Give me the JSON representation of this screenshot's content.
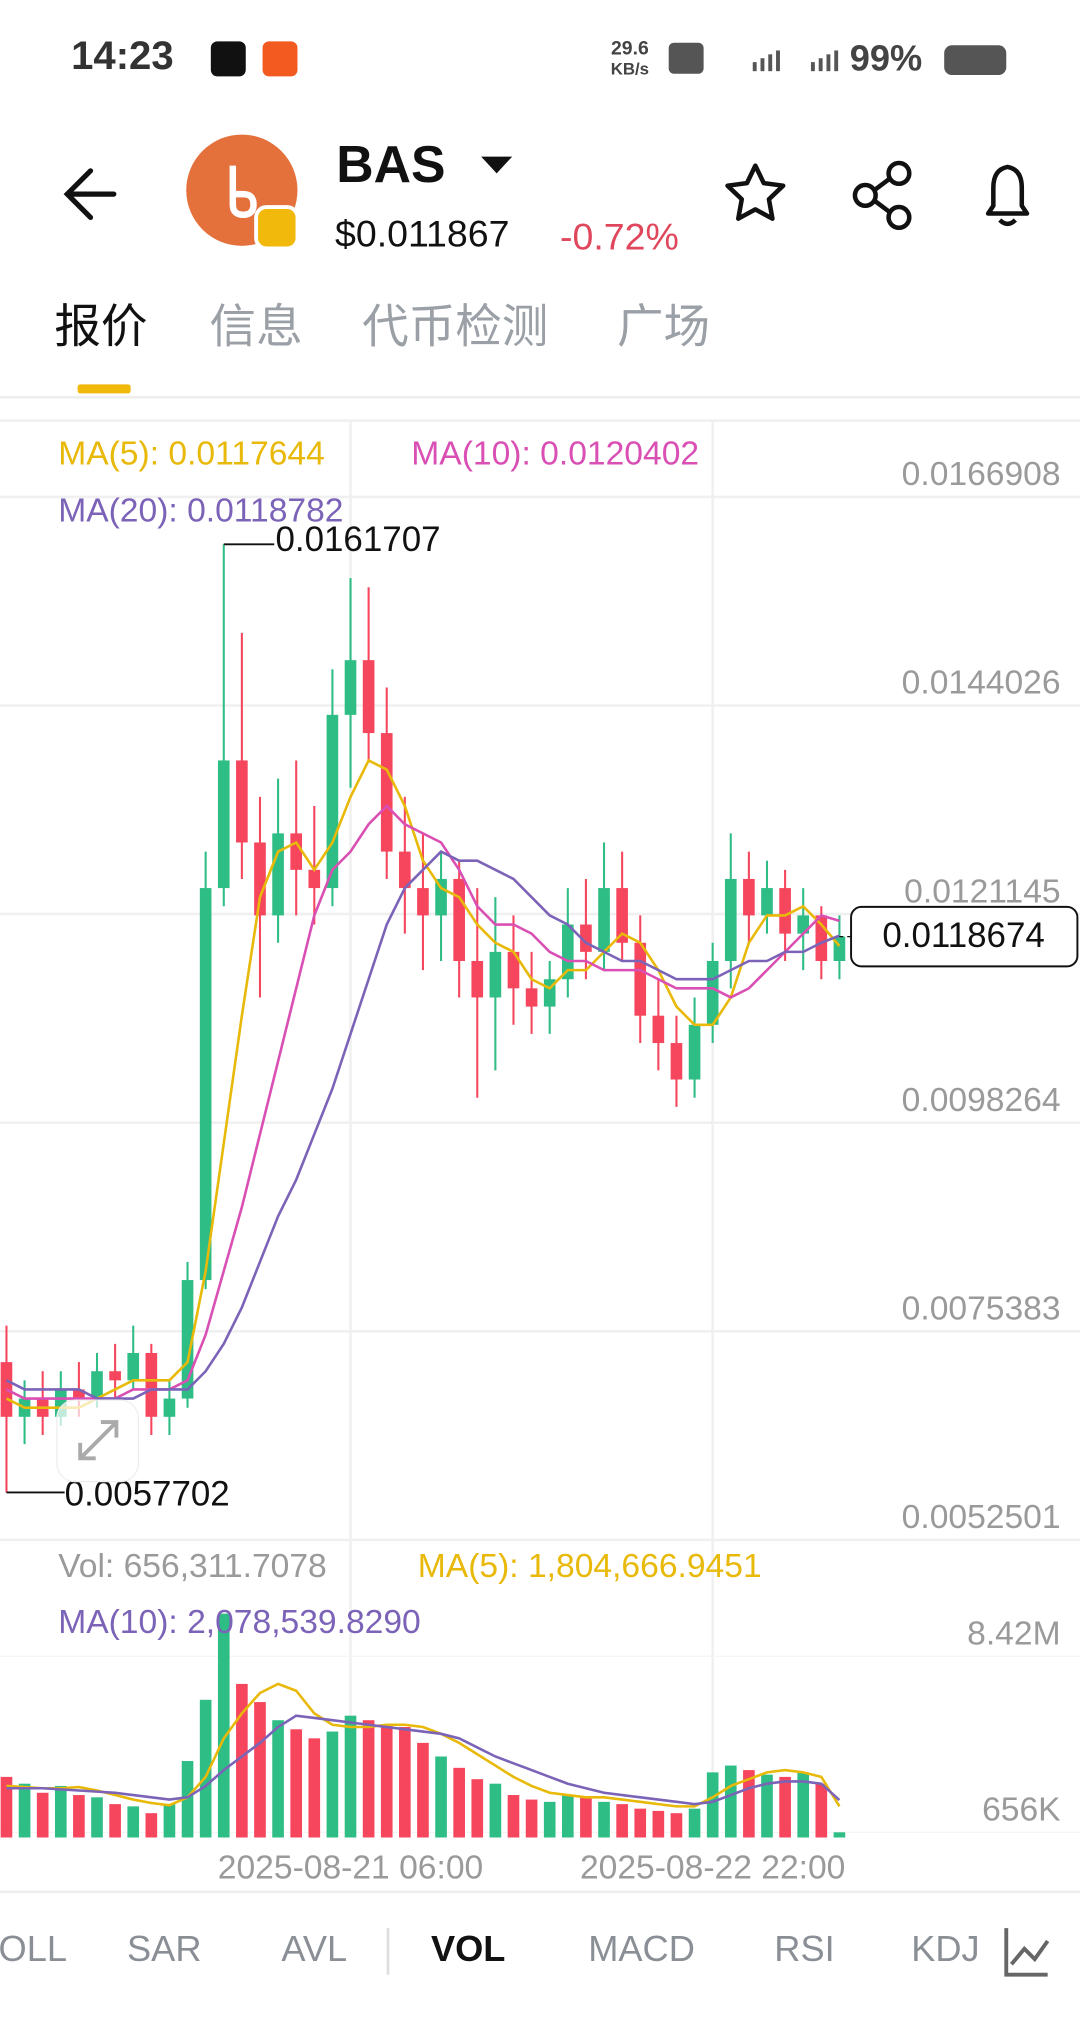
{
  "status_bar": {
    "time": "14:23",
    "speed_value": "29.6",
    "speed_unit": "KB/s",
    "battery": "99%"
  },
  "header": {
    "symbol": "BAS",
    "price": "$0.011867",
    "change": "-0.72%"
  },
  "tabs": [
    "报价",
    "信息",
    "代币检测",
    "广场"
  ],
  "active_tab": 0,
  "indicators": [
    "BOLL",
    "SAR",
    "AVL",
    "VOL",
    "MACD",
    "RSI",
    "KDJ"
  ],
  "active_indicator": 3,
  "chart_data": [
    {
      "type": "candlestick",
      "categories": [
        null,
        null,
        null,
        null,
        null,
        null,
        null,
        null,
        null,
        null,
        null,
        null,
        null,
        null,
        null,
        null,
        null,
        null,
        null,
        "2025-08-21 06:00",
        null,
        null,
        null,
        null,
        null,
        null,
        null,
        null,
        null,
        null,
        null,
        null,
        null,
        null,
        null,
        null,
        null,
        null,
        null,
        "2025-08-22 22:00",
        null,
        null,
        null,
        null,
        null,
        null,
        null
      ],
      "open": [
        0.0072,
        0.0066,
        0.0068,
        0.0066,
        0.0069,
        0.0068,
        0.0071,
        0.007,
        0.0073,
        0.0066,
        0.0068,
        0.0081,
        0.0124,
        0.0138,
        0.0129,
        0.0121,
        0.013,
        0.0126,
        0.0124,
        0.0143,
        0.0149,
        0.0141,
        0.0128,
        0.0124,
        0.0121,
        0.0125,
        0.0116,
        0.0112,
        0.0117,
        0.0113,
        0.0111,
        0.0114,
        0.012,
        0.0117,
        0.0124,
        0.0118,
        0.011,
        0.0107,
        0.0103,
        0.0109,
        0.0116,
        0.0125,
        0.0121,
        0.0124,
        0.0119,
        0.0121,
        0.0116
      ],
      "high": [
        0.0076,
        0.007,
        0.0071,
        0.0071,
        0.0072,
        0.0073,
        0.0074,
        0.0076,
        0.0074,
        0.007,
        0.0083,
        0.0128,
        0.0161707,
        0.0152,
        0.0134,
        0.0136,
        0.0138,
        0.0133,
        0.0148,
        0.0158,
        0.0157,
        0.0146,
        0.0134,
        0.013,
        0.0128,
        0.0127,
        0.0124,
        0.0123,
        0.0121,
        0.0117,
        0.0116,
        0.0124,
        0.0125,
        0.0129,
        0.0128,
        0.0121,
        0.0114,
        0.011,
        0.0112,
        0.0118,
        0.013,
        0.0128,
        0.0127,
        0.0126,
        0.0124,
        0.0122,
        0.0121
      ],
      "low": [
        0.0057702,
        0.0063,
        0.0064,
        0.0065,
        0.0066,
        0.0067,
        0.0068,
        0.0069,
        0.0064,
        0.0064,
        0.0067,
        0.008,
        0.0122,
        0.0125,
        0.0112,
        0.0118,
        0.0121,
        0.012,
        0.0122,
        0.0135,
        0.0138,
        0.0125,
        0.0119,
        0.0115,
        0.0116,
        0.0112,
        0.0101,
        0.0104,
        0.0109,
        0.0108,
        0.0108,
        0.0112,
        0.0114,
        0.0115,
        0.0116,
        0.0107,
        0.0104,
        0.01,
        0.0101,
        0.0107,
        0.0113,
        0.0118,
        0.0119,
        0.0116,
        0.0115,
        0.0114,
        0.0114
      ],
      "close": [
        0.0066,
        0.0068,
        0.0066,
        0.0069,
        0.0068,
        0.0071,
        0.007,
        0.0073,
        0.0066,
        0.0068,
        0.0081,
        0.0124,
        0.0138,
        0.0129,
        0.0121,
        0.013,
        0.0126,
        0.0124,
        0.0143,
        0.0149,
        0.0141,
        0.0128,
        0.0124,
        0.0121,
        0.0125,
        0.0116,
        0.0112,
        0.0117,
        0.0113,
        0.0111,
        0.0114,
        0.012,
        0.0117,
        0.0124,
        0.0118,
        0.011,
        0.0107,
        0.0103,
        0.0109,
        0.0116,
        0.0125,
        0.0121,
        0.0124,
        0.0119,
        0.0121,
        0.0116,
        0.0118674
      ],
      "up_color": "#2ebd85",
      "down_color": "#f6465d",
      "series": [
        {
          "name": "MA(5): 0.0117644",
          "color": "#e8b909",
          "values": [
            0.0068,
            0.0067,
            0.0067,
            0.0067,
            0.0067,
            0.0068,
            0.0069,
            0.007,
            0.007,
            0.007,
            0.0072,
            0.0082,
            0.0096,
            0.011,
            0.0123,
            0.0128,
            0.0129,
            0.0126,
            0.0129,
            0.0134,
            0.0138,
            0.0137,
            0.0133,
            0.0127,
            0.0124,
            0.0123,
            0.012,
            0.0118,
            0.0117,
            0.0114,
            0.0113,
            0.0115,
            0.0115,
            0.0117,
            0.0119,
            0.0118,
            0.0115,
            0.0111,
            0.0109,
            0.0109,
            0.0112,
            0.0118,
            0.0121,
            0.0121,
            0.0122,
            0.012,
            0.0117644
          ]
        },
        {
          "name": "MA(10): 0.0120402",
          "color": "#d94fb4",
          "values": [
            0.0069,
            0.0068,
            0.0068,
            0.0068,
            0.0068,
            0.0068,
            0.0068,
            0.0069,
            0.0069,
            0.0069,
            0.007,
            0.0075,
            0.0082,
            0.0089,
            0.0097,
            0.0105,
            0.0113,
            0.0121,
            0.0126,
            0.0128,
            0.0131,
            0.0133,
            0.0131,
            0.013,
            0.0129,
            0.0126,
            0.0122,
            0.012,
            0.012,
            0.0119,
            0.0117,
            0.0116,
            0.0116,
            0.0115,
            0.0115,
            0.0115,
            0.0114,
            0.0113,
            0.0113,
            0.0113,
            0.0112,
            0.0113,
            0.0115,
            0.0117,
            0.0119,
            0.0121,
            0.0120402
          ]
        },
        {
          "name": "MA(20): 0.0118782",
          "color": "#7b63b8",
          "values": [
            0.007,
            0.0069,
            0.0069,
            0.0069,
            0.0069,
            0.0068,
            0.0068,
            0.0068,
            0.0069,
            0.0069,
            0.0069,
            0.0071,
            0.0074,
            0.0078,
            0.0083,
            0.0088,
            0.0092,
            0.0097,
            0.0102,
            0.0108,
            0.0114,
            0.012,
            0.0124,
            0.0126,
            0.0128,
            0.0127,
            0.0127,
            0.0126,
            0.0125,
            0.0123,
            0.0121,
            0.012,
            0.0118,
            0.0117,
            0.0116,
            0.0116,
            0.0115,
            0.0114,
            0.0114,
            0.0114,
            0.0115,
            0.0116,
            0.0116,
            0.0117,
            0.0117,
            0.0118,
            0.0118782
          ]
        }
      ],
      "ylim": [
        0.0052501,
        0.0175
      ],
      "yticks": [
        0.0052501,
        0.0075383,
        0.0098264,
        0.0121145,
        0.0144026,
        0.0166908
      ],
      "grid": true,
      "high_marker": 0.0161707,
      "low_marker": 0.0057702,
      "last_price": 0.0118674
    },
    {
      "type": "bar",
      "series": [
        {
          "name": "Vol: 656,311.7078",
          "values": [
            3100000,
            2800000,
            2400000,
            2700000,
            2300000,
            2200000,
            1900000,
            1800000,
            1500000,
            1900000,
            3800000,
            6500000,
            10300000,
            7200000,
            6400000,
            5600000,
            5200000,
            4800000,
            5100000,
            5800000,
            5600000,
            5400000,
            5300000,
            4600000,
            4000000,
            3500000,
            3000000,
            2800000,
            2300000,
            2100000,
            2000000,
            2300000,
            2200000,
            2000000,
            1900000,
            1700000,
            1600000,
            1500000,
            1700000,
            3300000,
            3600000,
            3400000,
            3200000,
            3100000,
            3300000,
            2800000,
            656311.7078
          ]
        },
        {
          "name": "MA(5): 1,804,666.9451",
          "color": "#e8b909",
          "values": [
            2700000,
            2650000,
            2600000,
            2600000,
            2650000,
            2500000,
            2300000,
            2100000,
            1950000,
            1850000,
            2200000,
            3100000,
            4800000,
            5900000,
            6800000,
            7200000,
            6900000,
            5900000,
            5400000,
            5300000,
            5300000,
            5400000,
            5400000,
            5300000,
            5000000,
            4600000,
            4100000,
            3600000,
            3100000,
            2700000,
            2400000,
            2300000,
            2200000,
            2200000,
            2100000,
            2000000,
            1900000,
            1800000,
            1800000,
            2200000,
            2700000,
            3000000,
            3300000,
            3400000,
            3300000,
            3100000,
            1804666.9451
          ]
        },
        {
          "name": "MA(10): 2,078,539.8290",
          "color": "#7b63b8",
          "values": [
            2600000,
            2600000,
            2600000,
            2550000,
            2500000,
            2450000,
            2400000,
            2300000,
            2200000,
            2100000,
            2200000,
            2700000,
            3400000,
            4000000,
            4600000,
            5300000,
            5800000,
            5700000,
            5600000,
            5500000,
            5400000,
            5300000,
            5200000,
            5100000,
            5000000,
            4800000,
            4400000,
            4000000,
            3700000,
            3400000,
            3100000,
            2800000,
            2600000,
            2400000,
            2300000,
            2200000,
            2100000,
            2000000,
            1900000,
            2000000,
            2300000,
            2600000,
            2800000,
            2900000,
            2900000,
            2800000,
            2078539.829
          ]
        }
      ],
      "ylim": [
        428000,
        10700000
      ],
      "yticks": [
        {
          "value": 656000,
          "label": "656K"
        },
        {
          "value": 8420000,
          "label": "8.42M"
        }
      ]
    }
  ]
}
